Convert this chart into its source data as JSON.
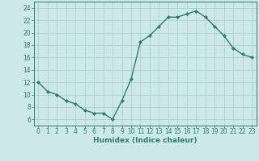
{
  "x": [
    0,
    1,
    2,
    3,
    4,
    5,
    6,
    7,
    8,
    9,
    10,
    11,
    12,
    13,
    14,
    15,
    16,
    17,
    18,
    19,
    20,
    21,
    22,
    23
  ],
  "y": [
    12,
    10.5,
    10,
    9,
    8.5,
    7.5,
    7,
    7,
    6,
    9,
    12.5,
    18.5,
    19.5,
    21,
    22.5,
    22.5,
    23,
    23.5,
    22.5,
    21,
    19.5,
    17.5,
    16.5,
    16
  ],
  "line_color": "#2e7d6e",
  "marker": "D",
  "marker_size": 2.2,
  "bg_color": "#cce8e8",
  "grid_color": "#b0d0d0",
  "xlabel": "Humidex (Indice chaleur)",
  "xlim": [
    -0.5,
    23.5
  ],
  "ylim": [
    5,
    25
  ],
  "yticks": [
    6,
    8,
    10,
    12,
    14,
    16,
    18,
    20,
    22,
    24
  ],
  "xticks": [
    0,
    1,
    2,
    3,
    4,
    5,
    6,
    7,
    8,
    9,
    10,
    11,
    12,
    13,
    14,
    15,
    16,
    17,
    18,
    19,
    20,
    21,
    22,
    23
  ],
  "tick_color": "#2e7d6e",
  "axis_color": "#2e7d6e",
  "xlabel_fontsize": 6.5,
  "tick_fontsize": 5.5
}
